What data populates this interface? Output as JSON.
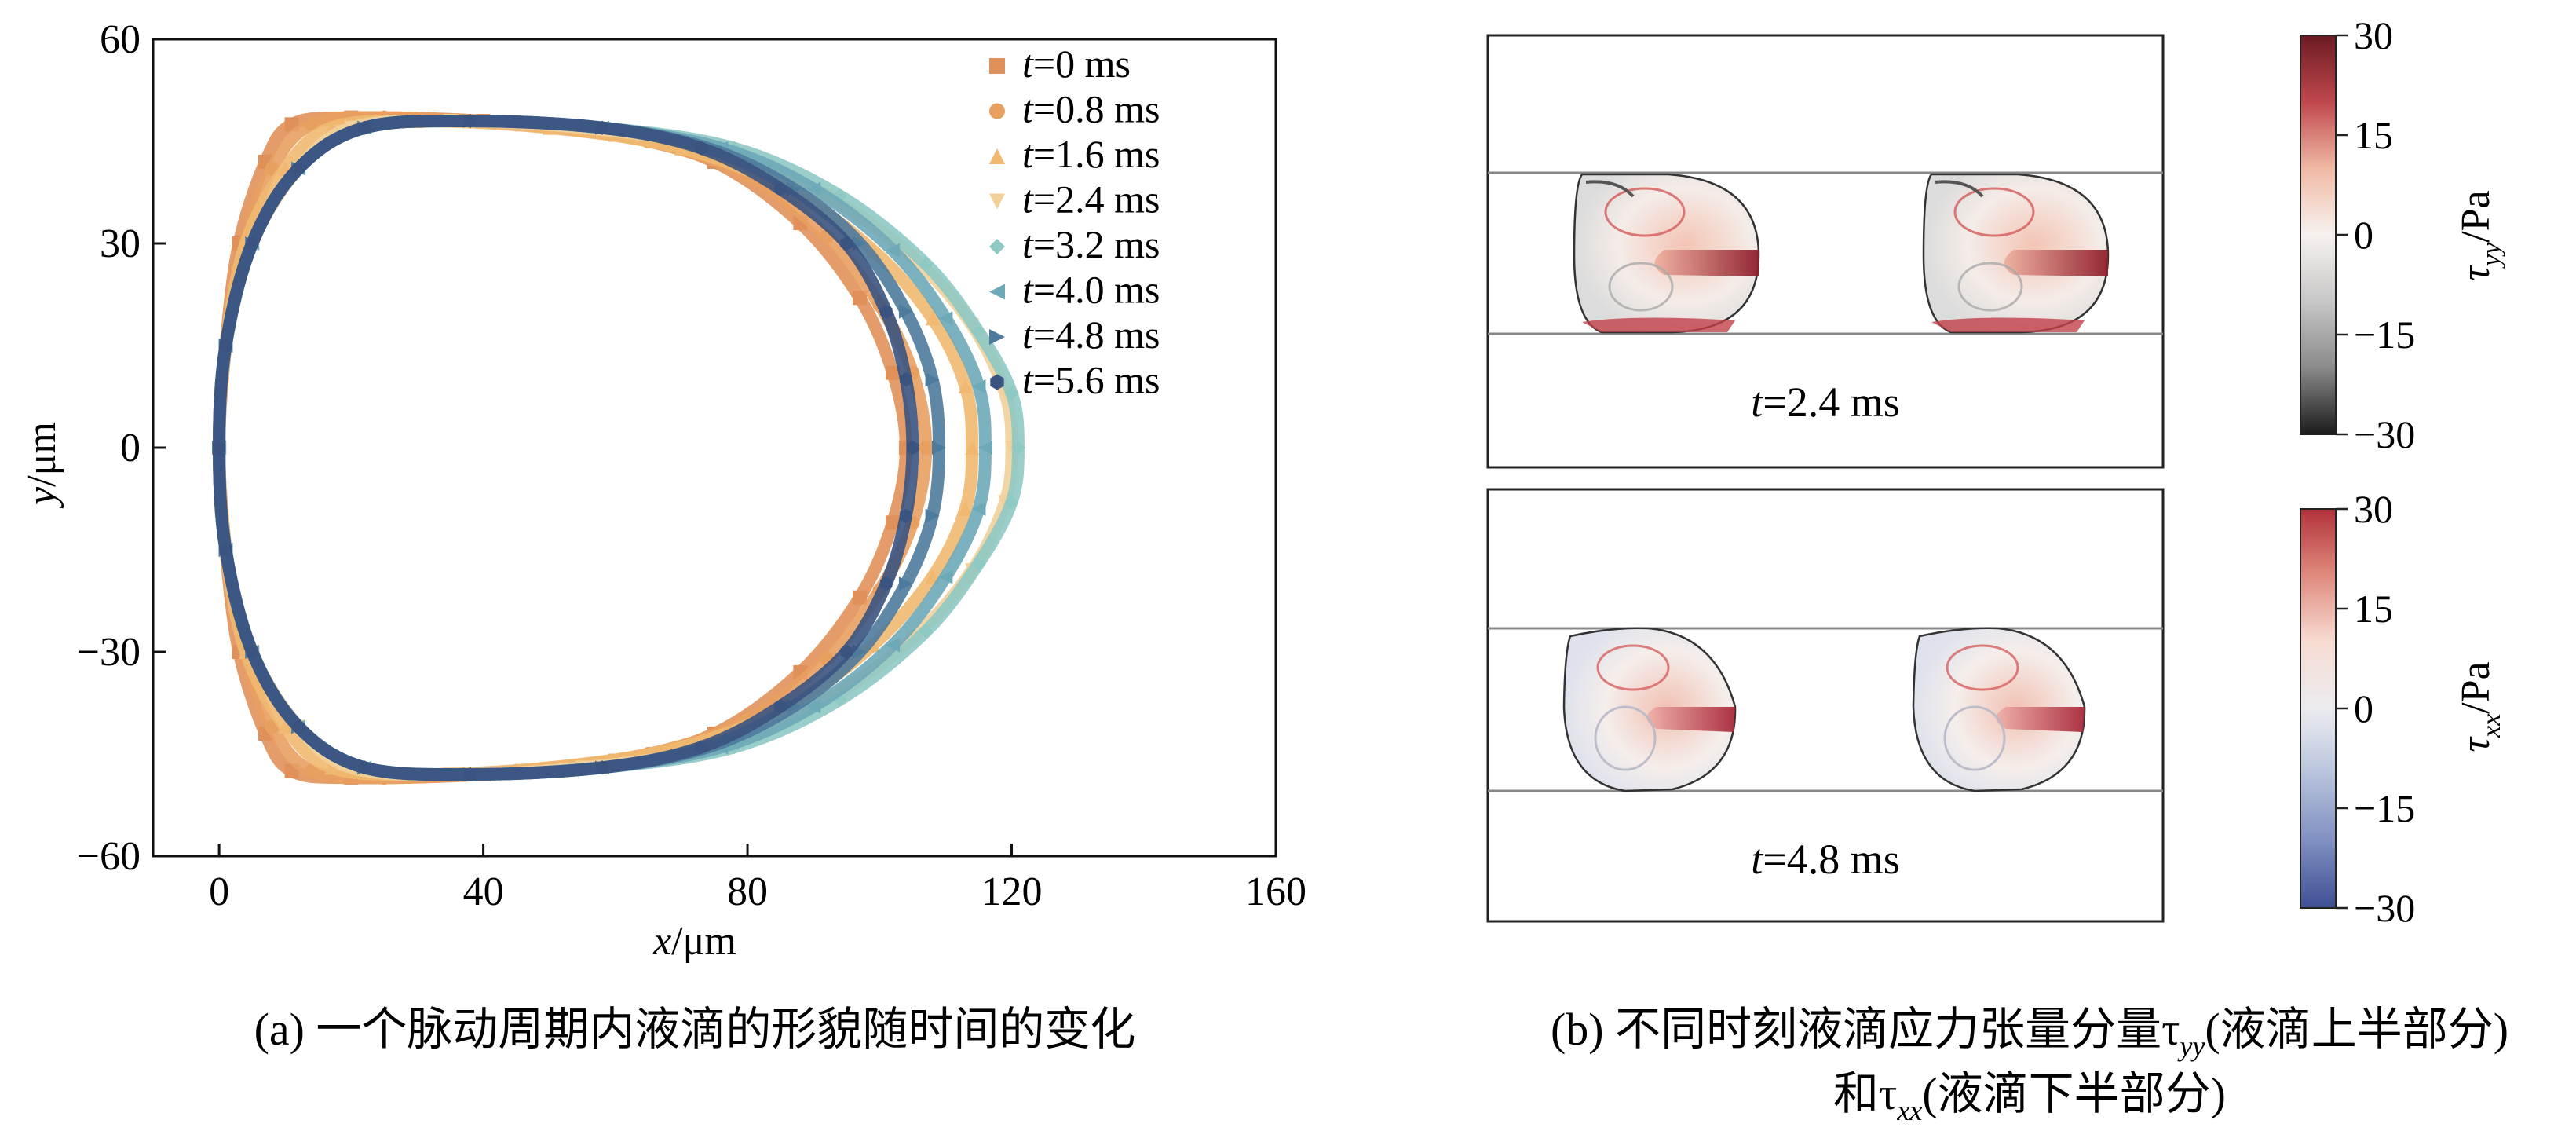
{
  "panel_a": {
    "caption": "(a) 一个脉动周期内液滴的形貌随时间的变化",
    "chart_data": {
      "type": "line",
      "title": "",
      "xlabel": "x/μm",
      "ylabel": "y/μm",
      "xlim": [
        -10,
        160
      ],
      "ylim": [
        -60,
        60
      ],
      "xticks": [
        "0",
        "40",
        "80",
        "120",
        "160"
      ],
      "yticks": [
        "60",
        "30",
        "0",
        "−30",
        "−60"
      ],
      "legend": "top-right",
      "grid": false,
      "series": [
        {
          "name": "t=0 ms",
          "color": "#e0915a",
          "marker": "square",
          "points": [
            [
              0,
              0
            ],
            [
              1,
              15
            ],
            [
              3,
              30
            ],
            [
              7,
              42
            ],
            [
              11,
              47.5
            ],
            [
              20,
              48.5
            ],
            [
              40,
              48
            ],
            [
              60,
              46
            ],
            [
              75,
              42
            ],
            [
              88,
              33
            ],
            [
              97,
              22
            ],
            [
              102,
              11
            ],
            [
              104,
              0
            ],
            [
              102,
              -11
            ],
            [
              97,
              -22
            ],
            [
              88,
              -33
            ],
            [
              75,
              -42
            ],
            [
              60,
              -46
            ],
            [
              40,
              -48
            ],
            [
              20,
              -48.5
            ],
            [
              11,
              -47.5
            ],
            [
              7,
              -42
            ],
            [
              3,
              -30
            ],
            [
              1,
              -15
            ],
            [
              0,
              0
            ]
          ]
        },
        {
          "name": "t=0.8 ms",
          "color": "#e8a060",
          "marker": "circle",
          "points": [
            [
              0,
              0
            ],
            [
              1,
              15
            ],
            [
              4,
              30
            ],
            [
              8,
              41
            ],
            [
              14,
              47.5
            ],
            [
              25,
              48.5
            ],
            [
              45,
              47.5
            ],
            [
              65,
              45
            ],
            [
              80,
              40
            ],
            [
              92,
              31
            ],
            [
              100,
              21
            ],
            [
              105,
              11
            ],
            [
              107,
              0
            ],
            [
              105,
              -11
            ],
            [
              100,
              -21
            ],
            [
              92,
              -31
            ],
            [
              80,
              -40
            ],
            [
              65,
              -45
            ],
            [
              45,
              -47.5
            ],
            [
              25,
              -48.5
            ],
            [
              14,
              -47.5
            ],
            [
              8,
              -41
            ],
            [
              4,
              -30
            ],
            [
              1,
              -15
            ],
            [
              0,
              0
            ]
          ]
        },
        {
          "name": "t=1.6 ms",
          "color": "#f0b870",
          "marker": "triangle-up",
          "points": [
            [
              0,
              0
            ],
            [
              1,
              15
            ],
            [
              4,
              30
            ],
            [
              10,
              41
            ],
            [
              17,
              47
            ],
            [
              30,
              48
            ],
            [
              50,
              47
            ],
            [
              70,
              44
            ],
            [
              86,
              38
            ],
            [
              99,
              29
            ],
            [
              108,
              19
            ],
            [
              113,
              9
            ],
            [
              114,
              0
            ],
            [
              113,
              -9
            ],
            [
              108,
              -19
            ],
            [
              99,
              -29
            ],
            [
              86,
              -38
            ],
            [
              70,
              -44
            ],
            [
              50,
              -47
            ],
            [
              30,
              -48
            ],
            [
              17,
              -47
            ],
            [
              10,
              -41
            ],
            [
              4,
              -30
            ],
            [
              1,
              -15
            ],
            [
              0,
              0
            ]
          ]
        },
        {
          "name": "t=2.4 ms",
          "color": "#f1d09a",
          "marker": "triangle-down",
          "points": [
            [
              0,
              0
            ],
            [
              1,
              15
            ],
            [
              5,
              30
            ],
            [
              12,
              41
            ],
            [
              20,
              47
            ],
            [
              35,
              48
            ],
            [
              55,
              47
            ],
            [
              75,
              44
            ],
            [
              92,
              37
            ],
            [
              105,
              28
            ],
            [
              114,
              18
            ],
            [
              119,
              8
            ],
            [
              120,
              0
            ],
            [
              119,
              -8
            ],
            [
              114,
              -18
            ],
            [
              105,
              -28
            ],
            [
              92,
              -37
            ],
            [
              75,
              -44
            ],
            [
              55,
              -47
            ],
            [
              35,
              -48
            ],
            [
              20,
              -47
            ],
            [
              12,
              -41
            ],
            [
              5,
              -30
            ],
            [
              1,
              -15
            ],
            [
              0,
              0
            ]
          ]
        },
        {
          "name": "t=3.2 ms",
          "color": "#8fc9c4",
          "marker": "diamond",
          "points": [
            [
              0,
              0
            ],
            [
              1,
              15
            ],
            [
              5,
              30
            ],
            [
              12,
              41
            ],
            [
              22,
              47
            ],
            [
              38,
              48
            ],
            [
              58,
              47
            ],
            [
              78,
              44
            ],
            [
              94,
              37
            ],
            [
              107,
              27
            ],
            [
              115,
              17
            ],
            [
              120,
              8
            ],
            [
              121,
              0
            ],
            [
              120,
              -8
            ],
            [
              115,
              -17
            ],
            [
              107,
              -27
            ],
            [
              94,
              -37
            ],
            [
              78,
              -44
            ],
            [
              58,
              -47
            ],
            [
              38,
              -48
            ],
            [
              22,
              -47
            ],
            [
              12,
              -41
            ],
            [
              5,
              -30
            ],
            [
              1,
              -15
            ],
            [
              0,
              0
            ]
          ]
        },
        {
          "name": "t=4.0 ms",
          "color": "#6ea9b8",
          "marker": "triangle-left",
          "points": [
            [
              0,
              0
            ],
            [
              1,
              15
            ],
            [
              5,
              30
            ],
            [
              12,
              41
            ],
            [
              22,
              47
            ],
            [
              38,
              48
            ],
            [
              58,
              47
            ],
            [
              76,
              44
            ],
            [
              90,
              38
            ],
            [
              102,
              29
            ],
            [
              110,
              19
            ],
            [
              115,
              9
            ],
            [
              116,
              0
            ],
            [
              115,
              -9
            ],
            [
              110,
              -19
            ],
            [
              102,
              -29
            ],
            [
              90,
              -38
            ],
            [
              76,
              -44
            ],
            [
              58,
              -47
            ],
            [
              38,
              -48
            ],
            [
              22,
              -47
            ],
            [
              12,
              -41
            ],
            [
              5,
              -30
            ],
            [
              1,
              -15
            ],
            [
              0,
              0
            ]
          ]
        },
        {
          "name": "t=4.8 ms",
          "color": "#4e7a9c",
          "marker": "triangle-right",
          "points": [
            [
              0,
              0
            ],
            [
              1,
              15
            ],
            [
              5,
              30
            ],
            [
              12,
              41
            ],
            [
              22,
              47
            ],
            [
              38,
              48
            ],
            [
              58,
              47
            ],
            [
              74,
              44
            ],
            [
              87,
              38
            ],
            [
              97,
              30
            ],
            [
              104,
              20
            ],
            [
              108,
              10
            ],
            [
              109,
              0
            ],
            [
              108,
              -10
            ],
            [
              104,
              -20
            ],
            [
              97,
              -30
            ],
            [
              87,
              -38
            ],
            [
              74,
              -44
            ],
            [
              58,
              -47
            ],
            [
              38,
              -48
            ],
            [
              22,
              -47
            ],
            [
              12,
              -41
            ],
            [
              5,
              -30
            ],
            [
              1,
              -15
            ],
            [
              0,
              0
            ]
          ]
        },
        {
          "name": "t=5.6 ms",
          "color": "#3a5380",
          "marker": "hexagon",
          "points": [
            [
              0,
              0
            ],
            [
              1,
              15
            ],
            [
              5,
              30
            ],
            [
              12,
              41
            ],
            [
              22,
              47
            ],
            [
              38,
              48
            ],
            [
              58,
              47
            ],
            [
              73,
              44
            ],
            [
              85,
              38
            ],
            [
              95,
              30
            ],
            [
              101,
              20
            ],
            [
              104,
              10
            ],
            [
              105,
              0
            ],
            [
              104,
              -10
            ],
            [
              101,
              -20
            ],
            [
              95,
              -30
            ],
            [
              85,
              -38
            ],
            [
              73,
              -44
            ],
            [
              58,
              -47
            ],
            [
              38,
              -48
            ],
            [
              22,
              -47
            ],
            [
              12,
              -41
            ],
            [
              5,
              -30
            ],
            [
              1,
              -15
            ],
            [
              0,
              0
            ]
          ]
        }
      ]
    }
  },
  "panel_b": {
    "caption_line1_prefix": "(b) 不同时刻液滴应力张量分量τ",
    "caption_line1_sub": "yy",
    "caption_line1_suffix": "(液滴上半部分)",
    "caption_line2_prefix": "和τ",
    "caption_line2_sub": "xx",
    "caption_line2_suffix": "(液滴下半部分)",
    "subplots": [
      {
        "time_label": "t=2.4 ms"
      },
      {
        "time_label": "t=4.8 ms"
      }
    ],
    "colorbar_top": {
      "label_symbol": "τ",
      "label_sub": "yy",
      "label_unit": "/Pa",
      "ticks": [
        "30",
        "15",
        "0",
        "−15",
        "−30"
      ],
      "colors": [
        "#6b1a22",
        "#c0484d",
        "#f0b9a4",
        "#f7f2ef",
        "#c7c7c7",
        "#8a8a8a",
        "#1b1b1b"
      ]
    },
    "colorbar_bottom": {
      "label_symbol": "τ",
      "label_sub": "xx",
      "label_unit": "/Pa",
      "ticks": [
        "30",
        "15",
        "0",
        "−15",
        "−30"
      ],
      "colors": [
        "#b2323a",
        "#e08a7e",
        "#f7dcd2",
        "#ececf0",
        "#b7c3dc",
        "#7f8fc0",
        "#3f4f95"
      ]
    }
  }
}
